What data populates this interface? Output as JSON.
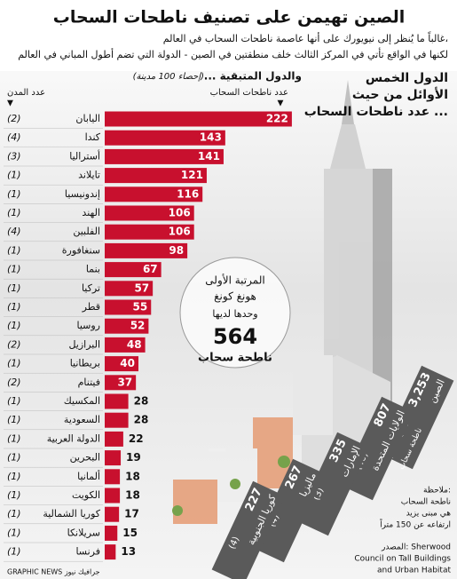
{
  "chart_data": {
    "type": "bar",
    "orientation": "horizontal",
    "title": "الصين تهيمن على تصنيف ناطحات السحاب",
    "subtitle": [
      "غالباً ما يُنظر إلى نيويورك على أنها عاصمة ناطحات السحاب في العالم،",
      "لكنها في الواقع تأتي في المركز الثالث خلف منطقتين في الصين - الدولة التي تضم أطول المباني في العالم"
    ],
    "section_title": "... والدول المتبقية",
    "section_note": "(إحصاء 100 مدينة)",
    "value_axis_label": "عدد ناطحات السحاب",
    "cities_label": "عدد المدن",
    "color": "#c8102e",
    "categories": [
      "اليابان",
      "كندا",
      "أستراليا",
      "تايلاند",
      "إندونيسيا",
      "الهند",
      "الفلبين",
      "سنغافورة",
      "بنما",
      "تركيا",
      "قطر",
      "روسيا",
      "البرازيل",
      "بريطانيا",
      "فيتنام",
      "المكسيك",
      "السعودية",
      "الدولة العربية",
      "البحرين",
      "ألمانيا",
      "الكويت",
      "كوريا الشمالية",
      "سريلانكا",
      "فرنسا"
    ],
    "values": [
      222,
      143,
      141,
      121,
      116,
      106,
      106,
      98,
      67,
      57,
      55,
      52,
      48,
      40,
      37,
      28,
      28,
      22,
      19,
      18,
      18,
      17,
      15,
      13
    ],
    "cities": [
      "(2)",
      "(4)",
      "(3)",
      "(1)",
      "(1)",
      "(1)",
      "(4)",
      "(1)",
      "(1)",
      "(1)",
      "(1)",
      "(1)",
      "(2)",
      "(1)",
      "(2)",
      "(1)",
      "(1)",
      "(1)",
      "(1)",
      "(1)",
      "(1)",
      "(1)",
      "(1)",
      "(1)"
    ],
    "top_five_title": [
      "الدول الخمس",
      "الأوائل من حيث",
      "عدد ناطحات السحاب ..."
    ],
    "top_five": {
      "names": [
        "الصين",
        "الولايات المتحدة",
        "الإمارات",
        "ماليزيا",
        "كوريا الجنوبية"
      ],
      "values": [
        3253,
        807,
        335,
        267,
        227
      ],
      "value_labels": [
        "3,253",
        "807",
        "335",
        "267",
        "227"
      ],
      "cities": [
        "(40 مدينة)",
        "(40)",
        "(3)",
        "(4)",
        "(4)"
      ],
      "unit": "ناطحة سحاب"
    },
    "highlight": {
      "lines": [
        "المرتبة الأولى",
        "هونغ كونغ",
        "وحدها لديها"
      ],
      "value": 564,
      "unit": "ناطحة سحاب"
    },
    "note": [
      "ملاحظة:",
      "ناطحة السحاب",
      "هي مبنى يزيد",
      "ارتفاعه عن 150 متراً"
    ],
    "source": [
      "المصدر: Sherwood",
      "Council on Tall Buildings",
      "and Urban Habitat"
    ],
    "credit": "GRAPHIC NEWS جرافيك نيوز"
  }
}
